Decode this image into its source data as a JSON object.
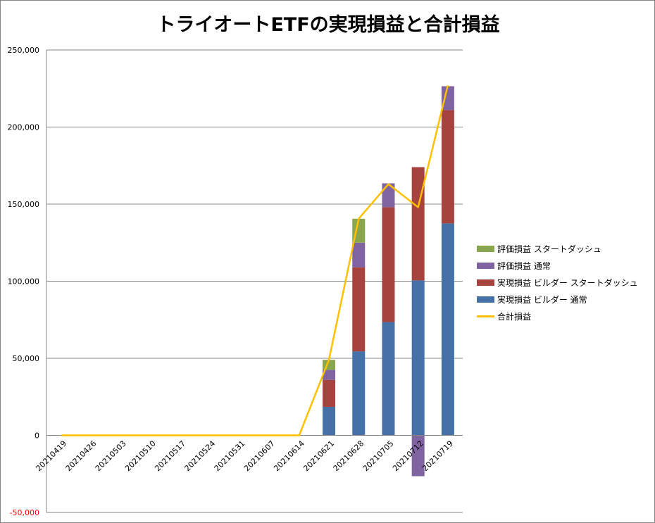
{
  "chart_data": {
    "type": "bar",
    "title": "トライオートETFの実現損益と合計損益",
    "categories": [
      "20210419",
      "20210426",
      "20210503",
      "20210510",
      "20210517",
      "20210524",
      "20210531",
      "20210607",
      "20210614",
      "20210621",
      "20210628",
      "20210705",
      "20210712",
      "20210719"
    ],
    "series": [
      {
        "name": "実現損益 ビルダー 通常",
        "color": "#4571A6",
        "values": [
          0,
          0,
          0,
          0,
          0,
          0,
          0,
          0,
          0,
          18500,
          54500,
          73500,
          100500,
          137500
        ]
      },
      {
        "name": "実現損益 ビルダー スタートダッシュ",
        "color": "#A7433F",
        "values": [
          0,
          0,
          0,
          0,
          0,
          0,
          0,
          0,
          0,
          17500,
          54500,
          74500,
          73500,
          73500
        ]
      },
      {
        "name": "評価損益 通常",
        "color": "#8064A2",
        "values": [
          0,
          0,
          0,
          0,
          0,
          0,
          0,
          0,
          0,
          6500,
          16000,
          15500,
          -26500,
          15500
        ]
      },
      {
        "name": "評価損益 スタートダッシュ",
        "color": "#89A54E",
        "values": [
          0,
          0,
          0,
          0,
          0,
          0,
          0,
          0,
          0,
          6500,
          15500,
          0,
          0,
          0
        ]
      }
    ],
    "line_series": {
      "name": "合計損益",
      "color": "#FFC000",
      "values": [
        0,
        0,
        0,
        0,
        0,
        0,
        0,
        0,
        0,
        49000,
        140500,
        163000,
        148000,
        227000
      ]
    },
    "y_ticks": [
      "250,000",
      "200,000",
      "150,000",
      "100,000",
      "50,000",
      "0",
      "-50,000"
    ],
    "y_tick_values": [
      250000,
      200000,
      150000,
      100000,
      50000,
      0,
      -50000
    ],
    "negative_tick_color": "#FF0000",
    "ylim": [
      -50000,
      250000
    ],
    "grid": true,
    "legend_position": "right",
    "legend_order": [
      "評価損益 スタートダッシュ",
      "評価損益 通常",
      "実現損益 ビルダー スタートダッシュ",
      "実現損益 ビルダー 通常",
      "合計損益"
    ]
  }
}
